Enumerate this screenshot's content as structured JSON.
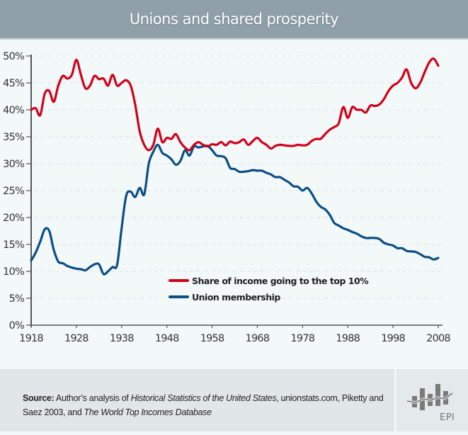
{
  "header": {
    "title": "Unions and shared prosperity"
  },
  "chart_data": {
    "type": "line",
    "title": "Unions and shared prosperity",
    "xlabel": "",
    "ylabel": "",
    "xlim": [
      1918,
      2008
    ],
    "ylim": [
      0,
      50
    ],
    "grid": true,
    "legend_position": "center-right",
    "x_ticks": [
      "1918",
      "1928",
      "1938",
      "1948",
      "1958",
      "1968",
      "1978",
      "1988",
      "1998",
      "2008"
    ],
    "y_ticks": [
      "0%",
      "5%",
      "10%",
      "15%",
      "20%",
      "25%",
      "30%",
      "35%",
      "40%",
      "45%",
      "50%"
    ],
    "x": [
      1918,
      1919,
      1920,
      1921,
      1922,
      1923,
      1924,
      1925,
      1926,
      1927,
      1928,
      1929,
      1930,
      1931,
      1932,
      1933,
      1934,
      1935,
      1936,
      1937,
      1938,
      1939,
      1940,
      1941,
      1942,
      1943,
      1944,
      1945,
      1946,
      1947,
      1948,
      1949,
      1950,
      1951,
      1952,
      1953,
      1954,
      1955,
      1956,
      1957,
      1958,
      1959,
      1960,
      1961,
      1962,
      1963,
      1964,
      1965,
      1966,
      1967,
      1968,
      1969,
      1970,
      1971,
      1972,
      1973,
      1974,
      1975,
      1976,
      1977,
      1978,
      1979,
      1980,
      1981,
      1982,
      1983,
      1984,
      1985,
      1986,
      1987,
      1988,
      1989,
      1990,
      1991,
      1992,
      1993,
      1994,
      1995,
      1996,
      1997,
      1998,
      1999,
      2000,
      2001,
      2002,
      2003,
      2004,
      2005,
      2006,
      2007,
      2008
    ],
    "series": [
      {
        "name": "Share of income going to the top 10%",
        "color": "#d0021b",
        "values": [
          40.0,
          40.3,
          39.0,
          43.0,
          43.5,
          41.5,
          44.5,
          46.3,
          45.8,
          46.5,
          49.3,
          46.5,
          44.0,
          44.5,
          46.3,
          45.7,
          45.8,
          44.5,
          46.5,
          44.5,
          45.0,
          45.5,
          44.5,
          41.0,
          36.0,
          33.5,
          32.5,
          33.5,
          36.5,
          34.0,
          34.8,
          34.6,
          35.5,
          34.0,
          33.0,
          32.5,
          33.5,
          34.0,
          33.5,
          33.2,
          33.6,
          33.5,
          34.0,
          33.4,
          34.1,
          33.8,
          34.0,
          34.5,
          33.5,
          34.2,
          34.8,
          34.0,
          33.5,
          32.8,
          33.3,
          33.5,
          33.4,
          33.3,
          33.3,
          33.5,
          33.4,
          33.5,
          34.2,
          34.6,
          34.6,
          35.5,
          36.3,
          36.8,
          37.5,
          40.5,
          38.5,
          40.5,
          40.0,
          40.0,
          39.5,
          40.8,
          40.7,
          41.0,
          42.0,
          43.5,
          44.5,
          45.0,
          46.0,
          47.5,
          45.0,
          44.0,
          45.0,
          47.0,
          48.8,
          49.5,
          48.2
        ]
      },
      {
        "name": "Union membership",
        "color": "#0b4f86",
        "values": [
          12.0,
          13.5,
          15.5,
          17.8,
          17.5,
          14.0,
          11.8,
          11.5,
          11.0,
          10.7,
          10.5,
          10.4,
          10.2,
          10.8,
          11.3,
          11.3,
          9.5,
          10.0,
          10.8,
          11.2,
          18.0,
          24.0,
          24.8,
          23.8,
          25.5,
          24.3,
          30.0,
          32.2,
          33.5,
          32.0,
          31.5,
          30.8,
          29.8,
          30.5,
          32.5,
          31.5,
          33.2,
          33.0,
          33.2,
          33.3,
          32.5,
          31.5,
          31.4,
          31.0,
          29.2,
          29.0,
          28.5,
          28.5,
          28.6,
          28.8,
          28.7,
          28.7,
          28.3,
          28.0,
          27.5,
          27.5,
          27.0,
          26.5,
          25.8,
          25.7,
          25.0,
          25.5,
          24.5,
          23.0,
          22.0,
          21.5,
          20.5,
          19.0,
          18.5,
          18.0,
          17.7,
          17.3,
          17.0,
          16.5,
          16.2,
          16.2,
          16.2,
          16.0,
          15.3,
          15.0,
          14.8,
          14.3,
          14.3,
          13.8,
          13.7,
          13.6,
          13.2,
          12.7,
          12.6,
          12.2,
          12.5
        ]
      }
    ]
  },
  "footer": {
    "source_label": "Source:",
    "source_text_1": " Author’s analysis of ",
    "source_italic_1": "Historical Statistics of the United States",
    "source_text_2": ", unionstats.com, Piketty and Saez 2003, and ",
    "source_italic_2": "The World Top Incomes Database",
    "logo_text": "EPI"
  }
}
